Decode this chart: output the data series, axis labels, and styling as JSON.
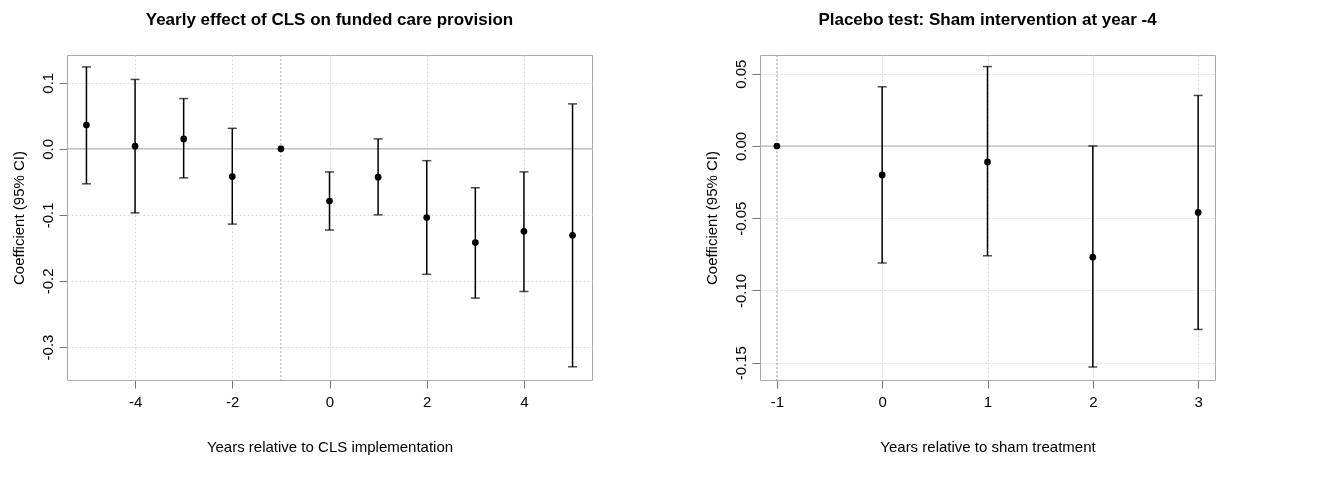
{
  "chart_data": [
    {
      "type": "scatter",
      "title": "Yearly effect of CLS on funded care provision",
      "xlabel": "Years relative to CLS implementation",
      "ylabel": "Coefficient (95% CI)",
      "x": [
        -5,
        -4,
        -3,
        -2,
        -1,
        0,
        1,
        2,
        3,
        4,
        5
      ],
      "values": [
        0.036,
        0.004,
        0.015,
        -0.042,
        0,
        -0.079,
        -0.043,
        -0.104,
        -0.142,
        -0.125,
        -0.131
      ],
      "errors": [
        [
          -0.053,
          0.124
        ],
        [
          -0.097,
          0.105
        ],
        [
          -0.044,
          0.076
        ],
        [
          -0.114,
          0.031
        ],
        null,
        [
          -0.123,
          -0.035
        ],
        [
          -0.1,
          0.015
        ],
        [
          -0.19,
          -0.018
        ],
        [
          -0.226,
          -0.059
        ],
        [
          -0.216,
          -0.035
        ],
        [
          -0.33,
          0.068
        ]
      ],
      "color": "#000000",
      "marker": "circle",
      "xlim": [
        -5.4,
        5.4
      ],
      "xticks": [
        -4,
        -2,
        0,
        2,
        4
      ],
      "ylim": [
        -0.35,
        0.142
      ],
      "yticks": [
        {
          "value": -0.3,
          "label": "-0.3"
        },
        {
          "value": -0.2,
          "label": "-0.2"
        },
        {
          "value": -0.1,
          "label": "-0.1"
        },
        {
          "value": 0,
          "label": "0.0"
        },
        {
          "value": 0.1,
          "label": "0.1"
        }
      ],
      "grid": true,
      "ref_lines": [
        {
          "axis": "y",
          "value": 0,
          "color": "#aaaaaa",
          "line_style": "solid"
        },
        {
          "axis": "x",
          "value": -1,
          "color": "#aaaaaa",
          "line_style": "dotted"
        }
      ]
    },
    {
      "type": "scatter",
      "title": "Placebo test: Sham intervention at year -4",
      "xlabel": "Years relative to sham treatment",
      "ylabel": "Coefficient (95% CI)",
      "x": [
        -1,
        0,
        1,
        2,
        3
      ],
      "values": [
        0,
        -0.02,
        -0.011,
        -0.077,
        -0.046
      ],
      "errors": [
        null,
        [
          -0.081,
          0.041
        ],
        [
          -0.076,
          0.055
        ],
        [
          -0.153,
          0.0
        ],
        [
          -0.127,
          0.035
        ]
      ],
      "color": "#000000",
      "marker": "circle",
      "xlim": [
        -1.16,
        3.16
      ],
      "xticks": [
        -1,
        0,
        1,
        2,
        3
      ],
      "ylim": [
        -0.162,
        0.063
      ],
      "yticks": [
        {
          "value": -0.15,
          "label": "-0.15"
        },
        {
          "value": -0.1,
          "label": "-0.10"
        },
        {
          "value": -0.05,
          "label": "-0.05"
        },
        {
          "value": 0,
          "label": "0.00"
        },
        {
          "value": 0.05,
          "label": "0.05"
        }
      ],
      "grid": true,
      "ref_lines": [
        {
          "axis": "y",
          "value": 0,
          "color": "#aaaaaa",
          "line_style": "solid"
        },
        {
          "axis": "x",
          "value": -1,
          "color": "#aaaaaa",
          "line_style": "dotted"
        }
      ]
    }
  ]
}
